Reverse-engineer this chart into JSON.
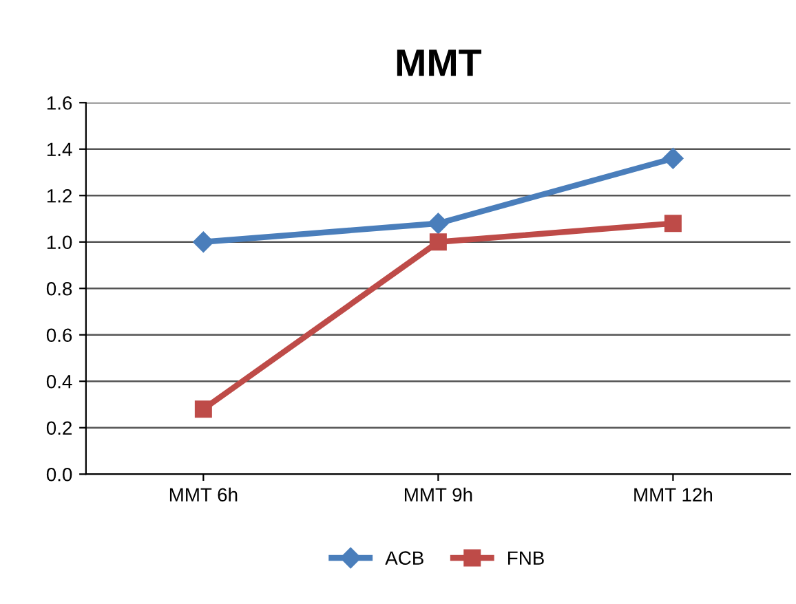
{
  "chart_data": {
    "type": "line",
    "title": "MMT",
    "categories": [
      "MMT 6h",
      "MMT 9h",
      "MMT 12h"
    ],
    "series": [
      {
        "name": "ACB",
        "color": "#4a7ebb",
        "values": [
          1.0,
          1.08,
          1.36
        ],
        "marker": "diamond"
      },
      {
        "name": "FNB",
        "color": "#be4b48",
        "values": [
          0.28,
          1.0,
          1.08
        ],
        "marker": "square"
      }
    ],
    "ylim": [
      0,
      1.6
    ],
    "yticks": [
      "0.0",
      0.2,
      0.4,
      0.6,
      0.8,
      "1.0",
      1.2,
      1.4,
      1.6
    ],
    "grid": "y",
    "legend": "bottom",
    "line_style": "solid"
  }
}
